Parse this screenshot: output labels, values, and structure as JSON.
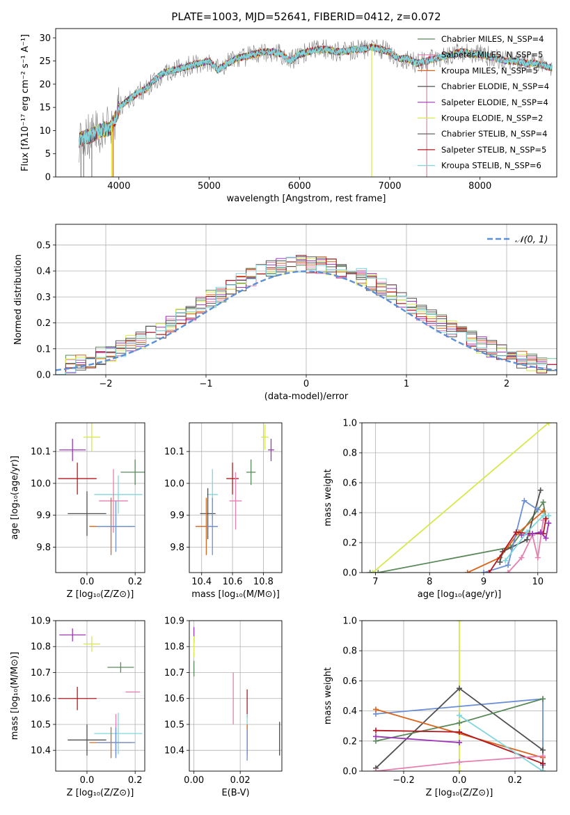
{
  "chart_data": [
    {
      "id": "spectrum",
      "type": "line",
      "title": "PLATE=1003, MJD=52641, FIBERID=0412, z=0.072",
      "xlabel": "wavelength [Angstrom, rest frame]",
      "ylabel": "Flux [fλ10⁻¹⁷ erg cm⁻² s⁻¹ A⁻¹]",
      "xlim": [
        3300,
        8850
      ],
      "ylim": [
        0,
        32
      ],
      "xticks": [
        4000,
        5000,
        6000,
        7000,
        8000
      ],
      "yticks": [
        0,
        5,
        10,
        15,
        20,
        25,
        30
      ],
      "grid": false,
      "legend_position": "top-right",
      "continuum": {
        "x": [
          3560,
          3700,
          3800,
          3900,
          3950,
          4000,
          4100,
          4200,
          4300,
          4400,
          4500,
          4600,
          4700,
          4800,
          4900,
          5000,
          5100,
          5200,
          5300,
          5400,
          5500,
          5600,
          5700,
          5800,
          5900,
          6000,
          6100,
          6200,
          6300,
          6400,
          6500,
          6600,
          6700,
          6800,
          6900,
          7000,
          7100,
          7200,
          7300,
          7400,
          7500,
          7600,
          7700,
          7800,
          7900,
          8000,
          8100,
          8200,
          8300,
          8400,
          8500,
          8600,
          8700,
          8800
        ],
        "y": [
          8,
          9,
          10,
          10.5,
          12,
          15,
          16.5,
          18,
          19,
          21,
          22.5,
          23,
          23.5,
          24,
          24.5,
          25,
          23,
          24.5,
          25.5,
          26,
          26.5,
          27,
          27,
          26.5,
          25,
          26.5,
          27,
          27.5,
          27.5,
          27,
          27,
          27.5,
          27.5,
          28,
          27.5,
          27,
          25.5,
          25.5,
          24.5,
          25,
          25.5,
          26,
          26.5,
          27,
          26.5,
          26.5,
          26,
          25.5,
          25,
          25,
          24.5,
          24.5,
          24,
          23.5
        ]
      },
      "series": [
        {
          "name": "Chabrier MILES, N_SSP=4",
          "color": "#5a8a5a"
        },
        {
          "name": "Salpeter MILES, N_SSP=5",
          "color": "#e67faf"
        },
        {
          "name": "Kroupa MILES, N_SSP=5",
          "color": "#d9641c"
        },
        {
          "name": "Chabrier ELODIE, N_SSP=4",
          "color": "#505050"
        },
        {
          "name": "Salpeter ELODIE, N_SSP=4",
          "color": "#9b36b9"
        },
        {
          "name": "Kroupa ELODIE, N_SSP=2",
          "color": "#d7e84a"
        },
        {
          "name": "Chabrier STELIB, N_SSP=4",
          "color": "#555555"
        },
        {
          "name": "Salpeter STELIB, N_SSP=5",
          "color": "#b3171e"
        },
        {
          "name": "Kroupa STELIB, N_SSP=6",
          "color": "#7fd6dc"
        }
      ]
    },
    {
      "id": "residuals",
      "type": "bar",
      "xlabel": "(data-model)/error",
      "ylabel": "Normed distribution",
      "xlim": [
        -2.5,
        2.5
      ],
      "ylim": [
        0,
        0.58
      ],
      "xticks": [
        -2,
        -1,
        0,
        1,
        2
      ],
      "xtick_labels": [
        "−2",
        "−1",
        "0",
        "1",
        "2"
      ],
      "yticks": [
        0.0,
        0.1,
        0.2,
        0.3,
        0.4,
        0.5
      ],
      "grid": true,
      "legend_position": "top-right",
      "legend_label": "𝒩(0, 1)",
      "gauss_color": "#5b8fd6",
      "bin_width": 0.1
    },
    {
      "id": "age_vs_Z",
      "type": "scatter",
      "xlabel": "Z [log₁₀(Z/Z⊙)]",
      "ylabel": "age  [log₁₀(age/yr)]",
      "xlim": [
        -0.13,
        0.24
      ],
      "ylim": [
        9.72,
        10.19
      ],
      "xticks": [
        0.0,
        0.2
      ],
      "yticks": [
        9.8,
        9.9,
        10.0,
        10.1
      ],
      "points": [
        {
          "x": -0.06,
          "y": 10.105,
          "xerr": 0.055,
          "yerr": 0.035,
          "color": "#9b36b9"
        },
        {
          "x": 0.02,
          "y": 10.145,
          "xerr": 0.035,
          "yerr": 0.045,
          "color": "#d7e84a"
        },
        {
          "x": 0.2,
          "y": 10.035,
          "xerr": 0.06,
          "yerr": 0.04,
          "color": "#5a8a5a"
        },
        {
          "x": -0.04,
          "y": 10.015,
          "xerr": 0.08,
          "yerr": 0.05,
          "color": "#b3171e"
        },
        {
          "x": 0.13,
          "y": 9.965,
          "xerr": 0.1,
          "yerr": 0.06,
          "color": "#7fd6dc"
        },
        {
          "x": 0.11,
          "y": 9.945,
          "xerr": 0.06,
          "yerr": 0.1,
          "color": "#e67faf"
        },
        {
          "x": 0.0,
          "y": 9.905,
          "xerr": 0.08,
          "yerr": 0.07,
          "color": "#505050"
        },
        {
          "x": 0.1,
          "y": 9.865,
          "xerr": 0.09,
          "yerr": 0.09,
          "color": "#d9641c"
        },
        {
          "x": 0.12,
          "y": 9.865,
          "xerr": 0.08,
          "yerr": 0.08,
          "color": "#6b8fd6"
        }
      ]
    },
    {
      "id": "age_vs_mass",
      "type": "scatter",
      "xlabel": "mass [log₁₀(M/M⊙)]",
      "ylabel": "",
      "xlim": [
        10.32,
        10.92
      ],
      "ylim": [
        9.72,
        10.19
      ],
      "xticks": [
        10.4,
        10.6,
        10.8
      ],
      "yticks": [
        9.8,
        9.9,
        10.0,
        10.1
      ],
      "points": [
        {
          "x": 10.85,
          "y": 10.105,
          "xerr": 0.02,
          "yerr": 0.035,
          "color": "#9b36b9"
        },
        {
          "x": 10.81,
          "y": 10.145,
          "xerr": 0.025,
          "yerr": 0.04,
          "color": "#d7e84a"
        },
        {
          "x": 10.72,
          "y": 10.035,
          "xerr": 0.03,
          "yerr": 0.04,
          "color": "#5a8a5a"
        },
        {
          "x": 10.6,
          "y": 10.015,
          "xerr": 0.04,
          "yerr": 0.05,
          "color": "#b3171e"
        },
        {
          "x": 10.47,
          "y": 9.965,
          "xerr": 0.035,
          "yerr": 0.08,
          "color": "#7fd6dc"
        },
        {
          "x": 10.62,
          "y": 9.945,
          "xerr": 0.04,
          "yerr": 0.09,
          "color": "#e67faf"
        },
        {
          "x": 10.44,
          "y": 9.905,
          "xerr": 0.05,
          "yerr": 0.08,
          "color": "#505050"
        },
        {
          "x": 10.43,
          "y": 9.865,
          "xerr": 0.07,
          "yerr": 0.09,
          "color": "#d9641c"
        },
        {
          "x": 10.47,
          "y": 9.865,
          "xerr": 0.035,
          "yerr": 0.09,
          "color": "#6b8fd6"
        }
      ]
    },
    {
      "id": "weight_vs_age",
      "type": "line",
      "xlabel": "age  [log₁₀(age/yr)]",
      "ylabel": "mass weight",
      "xlim": [
        6.75,
        10.35
      ],
      "ylim": [
        0,
        1.0
      ],
      "xticks": [
        7,
        8,
        9,
        10
      ],
      "yticks": [
        0.0,
        0.2,
        0.4,
        0.6,
        0.8,
        1.0
      ],
      "series": [
        {
          "color": "#d7e84a",
          "x": [
            6.95,
            10.2
          ],
          "y": [
            0.0,
            1.0
          ]
        },
        {
          "color": "#5a8a5a",
          "x": [
            6.9,
            7.05,
            9.5,
            10.1,
            10.15
          ],
          "y": [
            0.0,
            0.0,
            0.17,
            0.47,
            0.36
          ]
        },
        {
          "color": "#d9641c",
          "x": [
            8.7,
            9.3,
            9.65,
            10.1
          ],
          "y": [
            0.0,
            0.1,
            0.27,
            0.41
          ]
        },
        {
          "color": "#505050",
          "x": [
            9.3,
            9.35,
            9.8,
            10.05
          ],
          "y": [
            0.07,
            0.14,
            0.22,
            0.55
          ]
        },
        {
          "color": "#6b8fd6",
          "x": [
            9.0,
            9.45,
            9.75,
            10.0
          ],
          "y": [
            0.0,
            0.05,
            0.48,
            0.42
          ]
        },
        {
          "color": "#e67faf",
          "x": [
            9.45,
            9.7,
            9.9,
            10.0,
            10.1
          ],
          "y": [
            0.0,
            0.1,
            0.25,
            0.1,
            0.35
          ]
        },
        {
          "color": "#b3171e",
          "x": [
            9.1,
            9.6,
            9.85,
            10.1,
            10.15
          ],
          "y": [
            0.0,
            0.27,
            0.26,
            0.26,
            0.36
          ]
        },
        {
          "color": "#9b36b9",
          "x": [
            9.7,
            9.9,
            10.05,
            10.15,
            10.2
          ],
          "y": [
            0.25,
            0.26,
            0.27,
            0.23,
            0.33
          ]
        },
        {
          "color": "#7fd6dc",
          "x": [
            9.4,
            9.8,
            10.1,
            10.2
          ],
          "y": [
            0.08,
            0.27,
            0.38,
            0.38
          ]
        }
      ]
    },
    {
      "id": "mass_vs_Z",
      "type": "scatter",
      "xlabel": "Z [log₁₀(Z/Z⊙)]",
      "ylabel": "mass [log₁₀(M/M⊙)]",
      "xlim": [
        -0.13,
        0.24
      ],
      "ylim": [
        10.32,
        10.9
      ],
      "xticks": [
        0.0,
        0.2
      ],
      "yticks": [
        10.4,
        10.5,
        10.6,
        10.7,
        10.8,
        10.9
      ],
      "points": [
        {
          "x": -0.06,
          "y": 10.845,
          "xerr": 0.055,
          "yerr": 0.025,
          "color": "#9b36b9"
        },
        {
          "x": 0.02,
          "y": 10.81,
          "xerr": 0.035,
          "yerr": 0.03,
          "color": "#d7e84a"
        },
        {
          "x": 0.14,
          "y": 10.72,
          "xerr": 0.055,
          "yerr": 0.02,
          "color": "#5a8a5a"
        },
        {
          "x": 0.19,
          "y": 10.625,
          "xerr": 0.03,
          "yerr": 0.0,
          "color": "#e67faf"
        },
        {
          "x": -0.04,
          "y": 10.6,
          "xerr": 0.08,
          "yerr": 0.045,
          "color": "#b3171e"
        },
        {
          "x": 0.13,
          "y": 10.465,
          "xerr": 0.1,
          "yerr": 0.08,
          "color": "#7fd6dc"
        },
        {
          "x": 0.12,
          "y": 10.46,
          "xerr": 0.0,
          "yerr": 0.08,
          "color": "#e67faf"
        },
        {
          "x": 0.0,
          "y": 10.44,
          "xerr": 0.08,
          "yerr": 0.06,
          "color": "#505050"
        },
        {
          "x": 0.1,
          "y": 10.43,
          "xerr": 0.09,
          "yerr": 0.06,
          "color": "#d9641c"
        },
        {
          "x": 0.12,
          "y": 10.43,
          "xerr": 0.08,
          "yerr": 0.06,
          "color": "#6b8fd6"
        }
      ]
    },
    {
      "id": "mass_vs_ebv",
      "type": "scatter",
      "xlabel": "E(B-V)",
      "ylabel": "",
      "xlim": [
        -0.002,
        0.038
      ],
      "ylim": [
        10.32,
        10.9
      ],
      "xticks": [
        0.0,
        0.02
      ],
      "yticks": [
        10.4,
        10.5,
        10.6,
        10.7,
        10.8,
        10.9
      ],
      "points": [
        {
          "x": 0.0,
          "y": 10.845,
          "xerr": 0,
          "yerr": 0.03,
          "color": "#9b36b9"
        },
        {
          "x": 0.0,
          "y": 10.8,
          "xerr": 0,
          "yerr": 0.04,
          "color": "#d7e84a"
        },
        {
          "x": 0.0,
          "y": 10.715,
          "xerr": 0,
          "yerr": 0.03,
          "color": "#5a8a5a"
        },
        {
          "x": 0.017,
          "y": 10.6,
          "xerr": 0,
          "yerr": 0.1,
          "color": "#e67faf"
        },
        {
          "x": 0.023,
          "y": 10.58,
          "xerr": 0,
          "yerr": 0.055,
          "color": "#b3171e"
        },
        {
          "x": 0.023,
          "y": 10.46,
          "xerr": 0,
          "yerr": 0.08,
          "color": "#7fd6dc"
        },
        {
          "x": 0.023,
          "y": 10.44,
          "xerr": 0,
          "yerr": 0.06,
          "color": "#d9641c"
        },
        {
          "x": 0.023,
          "y": 10.42,
          "xerr": 0,
          "yerr": 0.06,
          "color": "#6b8fd6"
        },
        {
          "x": 0.037,
          "y": 10.445,
          "xerr": 0,
          "yerr": 0.065,
          "color": "#505050"
        }
      ]
    },
    {
      "id": "weight_vs_Z",
      "type": "line",
      "xlabel": "Z [log₁₀(Z/Z⊙)]",
      "ylabel": "mass weight",
      "xlim": [
        -0.35,
        0.35
      ],
      "ylim": [
        0,
        1.0
      ],
      "xticks": [
        -0.2,
        0.0,
        0.2
      ],
      "xtick_labels": [
        "−0.2",
        "0.0",
        "0.2"
      ],
      "yticks": [
        0.0,
        0.2,
        0.4,
        0.6,
        0.8,
        1.0
      ],
      "series": [
        {
          "color": "#d7e84a",
          "x": [
            0.0,
            0.0
          ],
          "y": [
            0.0,
            1.0
          ]
        },
        {
          "color": "#6b8fd6",
          "x": [
            -0.3,
            0.3,
            0.3
          ],
          "y": [
            0.38,
            0.48,
            0.04
          ]
        },
        {
          "color": "#505050",
          "x": [
            -0.3,
            0.0,
            0.3,
            0.3
          ],
          "y": [
            0.02,
            0.55,
            0.14,
            0.0
          ]
        },
        {
          "color": "#5a8a5a",
          "x": [
            -0.3,
            0.0,
            0.3
          ],
          "y": [
            0.2,
            0.32,
            0.48
          ]
        },
        {
          "color": "#d9641c",
          "x": [
            -0.3,
            0.3
          ],
          "y": [
            0.41,
            0.09
          ]
        },
        {
          "color": "#b3171e",
          "x": [
            -0.3,
            0.0,
            0.3
          ],
          "y": [
            0.27,
            0.26,
            0.05
          ]
        },
        {
          "color": "#9b36b9",
          "x": [
            -0.3,
            0.0
          ],
          "y": [
            0.23,
            0.19
          ]
        },
        {
          "color": "#e67faf",
          "x": [
            -0.3,
            0.0,
            0.3
          ],
          "y": [
            0.0,
            0.06,
            0.1
          ]
        },
        {
          "color": "#7fd6dc",
          "x": [
            0.0,
            0.3
          ],
          "y": [
            0.37,
            0.0
          ]
        }
      ]
    }
  ]
}
